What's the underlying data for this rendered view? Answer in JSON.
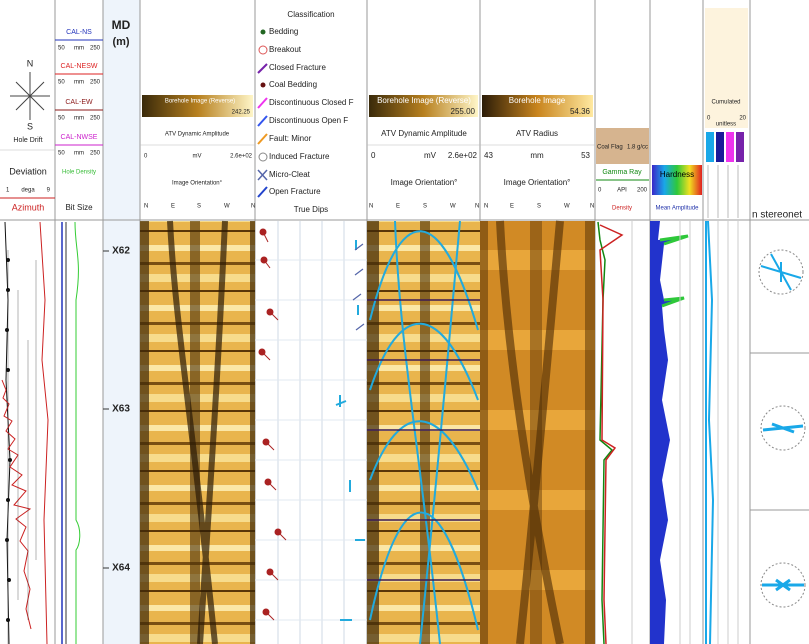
{
  "tracks": {
    "drift": {
      "title": "Hole Drift",
      "compass": [
        "N",
        "S"
      ],
      "deviation": "Deviation",
      "deviation_scale": [
        "1",
        "dega",
        "9"
      ],
      "azimuth": "Azimuth"
    },
    "caliper": {
      "curves": [
        {
          "name": "CAL-NS",
          "scale": [
            "50",
            "mm",
            "250"
          ]
        },
        {
          "name": "CAL-NESW",
          "scale": [
            "50",
            "mm",
            "250"
          ]
        },
        {
          "name": "CAL-EW",
          "scale": [
            "50",
            "mm",
            "250"
          ]
        },
        {
          "name": "CAL-NWSE",
          "scale": [
            "50",
            "mm",
            "250"
          ]
        }
      ],
      "hole_density": "Hole Density",
      "bit_size": "Bit Size"
    },
    "depth": {
      "title": "MD",
      "unit": "(m)",
      "marks": [
        "X62",
        "X63",
        "X64"
      ]
    },
    "image1": {
      "title": "Borehole Image (Reverse)",
      "value": "242.25",
      "curve": "ATV Dynamic Amplitude",
      "scale": [
        "0",
        "mV",
        "2.6e+02"
      ],
      "orientation": "Image Orientation°",
      "azimuths": [
        "N",
        "E",
        "S",
        "W",
        "N"
      ]
    },
    "classification": {
      "title": "Classification",
      "items": [
        "Bedding",
        "Breakout",
        "Closed Fracture",
        "Coal Bedding",
        "Discontinuous Closed F",
        "Discontinuous Open F",
        "Fault: Minor",
        "Induced Fracture",
        "Micro-Cleat",
        "Open Fracture"
      ],
      "footer": "True Dips"
    },
    "image2": {
      "title": "Borehole Image (Reverse)",
      "value": "255.00",
      "curve": "ATV Dynamic Amplitude",
      "scale": [
        "0",
        "mV",
        "2.6e+02"
      ],
      "orientation": "Image Orientation°",
      "azimuths": [
        "N",
        "E",
        "S",
        "W",
        "N"
      ]
    },
    "image3": {
      "title": "Borehole Image",
      "value": "54.36",
      "curve": "ATV Radius",
      "scale": [
        "43",
        "mm",
        "53"
      ],
      "orientation": "Image Orientation°",
      "azimuths": [
        "N",
        "E",
        "S",
        "W",
        "N"
      ]
    },
    "gamma": {
      "coal_flag": "Coal Flag",
      "coal_scale": "1.8 g/cc",
      "title": "Gamma Ray",
      "scale": [
        "0",
        "API",
        "200"
      ],
      "density": "Density"
    },
    "hardness": {
      "title": "Hardness",
      "curve": "Mean Amplitude"
    },
    "cumulated": {
      "title": "Cumulated",
      "scale": [
        "0",
        "unitless",
        "20"
      ]
    },
    "stereonet": {
      "title": "n stereonet"
    }
  }
}
